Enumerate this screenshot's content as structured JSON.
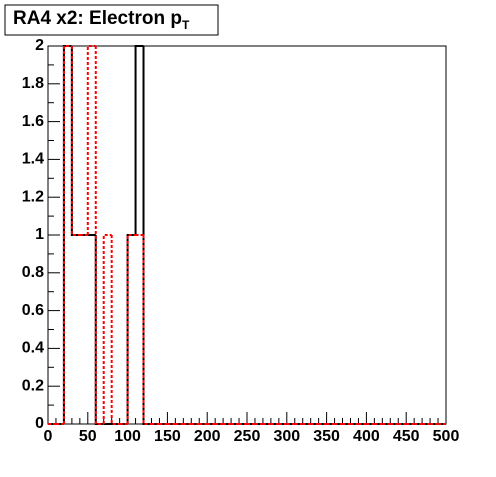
{
  "chart_data": {
    "type": "histogram",
    "title": "RA4 x2: Electron p",
    "title_subscript": "T",
    "bins": [
      0,
      10,
      20,
      30,
      40,
      50,
      60,
      70,
      80,
      90,
      100,
      110,
      120,
      130,
      140,
      150,
      160,
      170,
      180,
      190,
      200,
      210,
      220,
      230,
      240,
      250,
      260,
      270,
      280,
      290,
      300,
      310,
      320,
      330,
      340,
      350,
      360,
      370,
      380,
      390,
      400,
      410,
      420,
      430,
      440,
      450,
      460,
      470,
      480,
      490,
      500
    ],
    "series": [
      {
        "color": "#000000",
        "style": "solid",
        "values": [
          0,
          0,
          2,
          1,
          1,
          1,
          0,
          0,
          0,
          0,
          1,
          2,
          0,
          0,
          0,
          0,
          0,
          0,
          0,
          0,
          0,
          0,
          0,
          0,
          0,
          0,
          0,
          0,
          0,
          0,
          0,
          0,
          0,
          0,
          0,
          0,
          0,
          0,
          0,
          0,
          0,
          0,
          0,
          0,
          0,
          0,
          0,
          0,
          0,
          0
        ]
      },
      {
        "color": "#ff0000",
        "style": "dotted",
        "values": [
          0,
          0,
          2,
          1,
          1,
          2,
          0,
          1,
          0,
          0,
          1,
          1,
          0,
          0,
          0,
          0,
          0,
          0,
          0,
          0,
          0,
          0,
          0,
          0,
          0,
          0,
          0,
          0,
          0,
          0,
          0,
          0,
          0,
          0,
          0,
          0,
          0,
          0,
          0,
          0,
          0,
          0,
          0,
          0,
          0,
          0,
          0,
          0,
          0,
          0
        ]
      }
    ],
    "xlim": [
      0,
      500
    ],
    "xticks": [
      0,
      50,
      100,
      150,
      200,
      250,
      300,
      350,
      400,
      450,
      500
    ],
    "ylim": [
      0,
      2
    ],
    "yticks": [
      0,
      0.2,
      0.4,
      0.6,
      0.8,
      1,
      1.2,
      1.4,
      1.6,
      1.8,
      2
    ]
  }
}
